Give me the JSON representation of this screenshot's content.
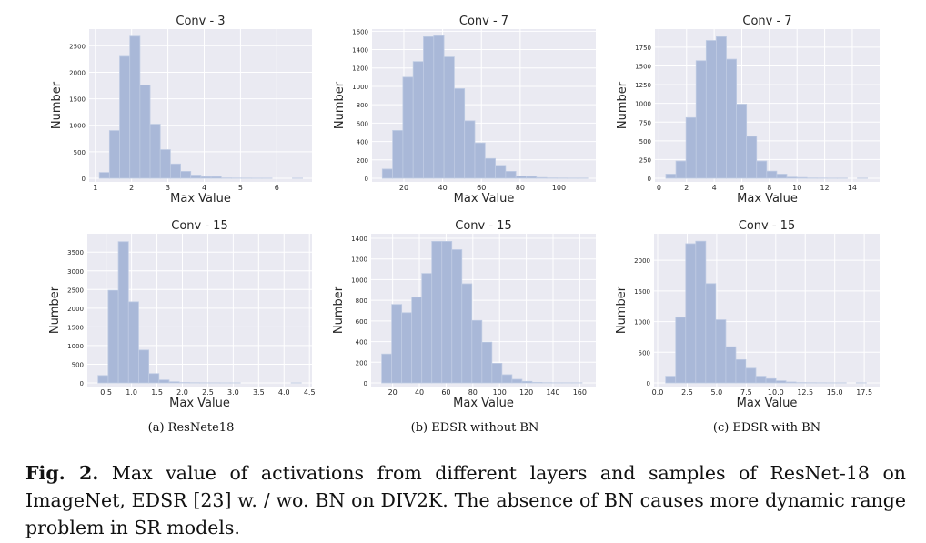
{
  "colors": {
    "plot_bg": "#eaeaf2",
    "bar": "#a9b8d8",
    "bar_edge": "#bfcbe3",
    "grid": "#ffffff",
    "text": "#262626"
  },
  "chart_data": [
    {
      "type": "bar",
      "title": "Conv - 3",
      "xlabel": "Max Value",
      "ylabel": "Number",
      "xlim": [
        0.83,
        6.97
      ],
      "ylim": [
        0,
        2814
      ],
      "grid": true,
      "xticks": [
        1,
        2,
        3,
        4,
        5,
        6
      ],
      "xtick_labels": [
        "1",
        "2",
        "3",
        "4",
        "5",
        "6"
      ],
      "yticks": [
        0,
        500,
        1000,
        1500,
        2000,
        2500
      ],
      "ytick_labels": [
        "0",
        "500",
        "1000",
        "1500",
        "2000",
        "2500"
      ],
      "bin_start": 1.11,
      "bin_width": 0.28,
      "values": [
        110,
        900,
        2300,
        2680,
        1760,
        1020,
        540,
        270,
        130,
        60,
        30,
        30,
        5,
        3,
        2,
        1,
        1,
        0,
        0,
        1
      ]
    },
    {
      "type": "bar",
      "title": "Conv - 7",
      "xlabel": "Max Value",
      "ylabel": "Number",
      "xlim": [
        3.6,
        119
      ],
      "ylim": [
        0,
        1623
      ],
      "grid": true,
      "xticks": [
        20,
        40,
        60,
        80,
        100
      ],
      "xtick_labels": [
        "20",
        "40",
        "60",
        "80",
        "100"
      ],
      "yticks": [
        0,
        200,
        400,
        600,
        800,
        1000,
        1200,
        1400,
        1600
      ],
      "ytick_labels": [
        "0",
        "200",
        "400",
        "600",
        "800",
        "1000",
        "1200",
        "1400",
        "1600"
      ],
      "bin_start": 8.9,
      "bin_width": 5.3,
      "values": [
        100,
        520,
        1100,
        1270,
        1540,
        1550,
        1320,
        975,
        625,
        385,
        215,
        140,
        75,
        25,
        20,
        8,
        3,
        2,
        1,
        1
      ]
    },
    {
      "type": "bar",
      "title": "Conv - 7",
      "xlabel": "Max Value",
      "ylabel": "Number",
      "xlim": [
        -0.29,
        15.98
      ],
      "ylim": [
        0,
        1992
      ],
      "grid": true,
      "xticks": [
        0,
        2,
        4,
        6,
        8,
        10,
        12,
        14
      ],
      "xtick_labels": [
        "0",
        "2",
        "4",
        "6",
        "8",
        "10",
        "12",
        "14"
      ],
      "yticks": [
        0,
        250,
        500,
        750,
        1000,
        1250,
        1500,
        1750
      ],
      "ytick_labels": [
        "0",
        "250",
        "500",
        "750",
        "1000",
        "1250",
        "1500",
        "1750"
      ],
      "bin_start": 0.5,
      "bin_width": 0.73,
      "values": [
        55,
        230,
        810,
        1570,
        1840,
        1890,
        1590,
        990,
        560,
        230,
        95,
        55,
        15,
        10,
        3,
        2,
        1,
        1,
        0,
        1
      ]
    },
    {
      "type": "bar",
      "title": "Conv - 15",
      "xlabel": "Max Value",
      "ylabel": "Number",
      "xlim": [
        0.13,
        4.55
      ],
      "ylim": [
        0,
        3992
      ],
      "grid": true,
      "xticks": [
        0.5,
        1.0,
        1.5,
        2.0,
        2.5,
        3.0,
        3.5,
        4.0,
        4.5
      ],
      "xtick_labels": [
        "0.5",
        "1.0",
        "1.5",
        "2.0",
        "2.5",
        "3.0",
        "3.5",
        "4.0",
        "4.5"
      ],
      "yticks": [
        0,
        500,
        1000,
        1500,
        2000,
        2500,
        3000,
        3500
      ],
      "ytick_labels": [
        "0",
        "500",
        "1000",
        "1500",
        "2000",
        "2500",
        "3000",
        "3500"
      ],
      "bin_start": 0.34,
      "bin_width": 0.2,
      "values": [
        200,
        2480,
        3780,
        2170,
        880,
        250,
        80,
        30,
        10,
        5,
        3,
        2,
        1,
        1,
        0,
        0,
        0,
        0,
        0,
        1
      ]
    },
    {
      "type": "bar",
      "title": "Conv - 15",
      "xlabel": "Max Value",
      "ylabel": "Number",
      "xlim": [
        3.9,
        172
      ],
      "ylim": [
        0,
        1444
      ],
      "grid": true,
      "xticks": [
        20,
        40,
        60,
        80,
        100,
        120,
        140,
        160
      ],
      "xtick_labels": [
        "20",
        "40",
        "60",
        "80",
        "100",
        "120",
        "140",
        "160"
      ],
      "yticks": [
        0,
        200,
        400,
        600,
        800,
        1000,
        1200,
        1400
      ],
      "ytick_labels": [
        "0",
        "200",
        "400",
        "600",
        "800",
        "1000",
        "1200",
        "1400"
      ],
      "bin_start": 11.8,
      "bin_width": 7.5,
      "values": [
        280,
        760,
        680,
        830,
        1060,
        1370,
        1370,
        1290,
        960,
        605,
        395,
        190,
        80,
        35,
        15,
        5,
        2,
        1,
        1,
        1
      ]
    },
    {
      "type": "bar",
      "title": "Conv - 15",
      "xlabel": "Max Value",
      "ylabel": "Number",
      "xlim": [
        -0.31,
        18.8
      ],
      "ylim": [
        0,
        2432
      ],
      "grid": true,
      "xticks": [
        0,
        2.5,
        5,
        7.5,
        10,
        12.5,
        15,
        17.5
      ],
      "xtick_labels": [
        "0.0",
        "2.5",
        "5.0",
        "7.5",
        "10.0",
        "12.5",
        "15.0",
        "17.5"
      ],
      "yticks": [
        0,
        500,
        1000,
        1500,
        2000
      ],
      "ytick_labels": [
        "0",
        "500",
        "1000",
        "1500",
        "2000"
      ],
      "bin_start": 0.67,
      "bin_width": 0.85,
      "values": [
        110,
        1070,
        2270,
        2310,
        1620,
        1030,
        590,
        380,
        240,
        110,
        70,
        35,
        15,
        5,
        3,
        2,
        1,
        1,
        0,
        1
      ]
    }
  ],
  "subcaptions": [
    "(a) ResNete18",
    "(b) EDSR without BN",
    "(c) EDSR with BN"
  ],
  "caption": {
    "label": "Fig. 2.",
    "text": " Max value of activations from different layers and samples of ResNet-18 on ImageNet, EDSR [23] w. / wo. BN on DIV2K. The absence of BN causes more dynamic range problem in SR models."
  }
}
